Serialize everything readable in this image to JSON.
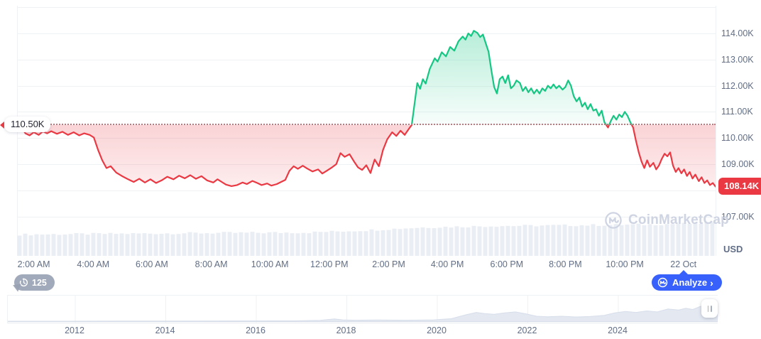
{
  "colors": {
    "up": "#16c784",
    "down": "#ea3943",
    "accent": "#3861fb",
    "grid": "#eff2f5",
    "axis_text": "#616e85",
    "watermark": "#ced4e2",
    "nav_fill": "#e3e8f1",
    "nav_stroke": "#d7deea",
    "volume": "#e9edf4"
  },
  "history_badge": {
    "count": "125"
  },
  "analyze": {
    "label": "Analyze",
    "chevron": "›"
  },
  "watermark": {
    "label": "CoinMarketCap"
  },
  "chart_data": {
    "type": "line",
    "unit": "USD",
    "baseline_value": 110.5,
    "baseline_label": "110.50K",
    "last_price_value": 108.14,
    "last_price_label": "108.14K",
    "ylim": [
      106.6,
      115.2
    ],
    "grid": true,
    "y_ticks": [
      {
        "label": "114.00K",
        "value": 114
      },
      {
        "label": "113.00K",
        "value": 113
      },
      {
        "label": "112.00K",
        "value": 112
      },
      {
        "label": "111.00K",
        "value": 111
      },
      {
        "label": "110.00K",
        "value": 110
      },
      {
        "label": "109.00K",
        "value": 109
      },
      {
        "label": "107.00K",
        "value": 107
      }
    ],
    "x_ticks": [
      {
        "label": "2:00 AM",
        "f": 0.024
      },
      {
        "label": "4:00 AM",
        "f": 0.109
      },
      {
        "label": "6:00 AM",
        "f": 0.193
      },
      {
        "label": "8:00 AM",
        "f": 0.278
      },
      {
        "label": "10:00 AM",
        "f": 0.362
      },
      {
        "label": "12:00 PM",
        "f": 0.447
      },
      {
        "label": "2:00 PM",
        "f": 0.532
      },
      {
        "label": "4:00 PM",
        "f": 0.616
      },
      {
        "label": "6:00 PM",
        "f": 0.701
      },
      {
        "label": "8:00 PM",
        "f": 0.785
      },
      {
        "label": "10:00 PM",
        "f": 0.87
      },
      {
        "label": "22 Oct",
        "f": 0.954
      }
    ],
    "price_series": [
      [
        0,
        110.5
      ],
      [
        0.006,
        110.42
      ],
      [
        0.012,
        110.18
      ],
      [
        0.018,
        110.1
      ],
      [
        0.024,
        110.22
      ],
      [
        0.031,
        110.12
      ],
      [
        0.037,
        110.25
      ],
      [
        0.043,
        110.18
      ],
      [
        0.049,
        110.26
      ],
      [
        0.057,
        110.16
      ],
      [
        0.065,
        110.24
      ],
      [
        0.073,
        110.12
      ],
      [
        0.081,
        110.22
      ],
      [
        0.089,
        110.1
      ],
      [
        0.096,
        110.18
      ],
      [
        0.104,
        110.12
      ],
      [
        0.11,
        110.02
      ],
      [
        0.116,
        109.55
      ],
      [
        0.122,
        109.15
      ],
      [
        0.128,
        108.85
      ],
      [
        0.134,
        108.92
      ],
      [
        0.142,
        108.68
      ],
      [
        0.15,
        108.55
      ],
      [
        0.159,
        108.42
      ],
      [
        0.167,
        108.32
      ],
      [
        0.175,
        108.44
      ],
      [
        0.183,
        108.3
      ],
      [
        0.191,
        108.42
      ],
      [
        0.199,
        108.28
      ],
      [
        0.207,
        108.38
      ],
      [
        0.215,
        108.52
      ],
      [
        0.224,
        108.42
      ],
      [
        0.232,
        108.56
      ],
      [
        0.24,
        108.46
      ],
      [
        0.248,
        108.58
      ],
      [
        0.256,
        108.44
      ],
      [
        0.264,
        108.54
      ],
      [
        0.272,
        108.38
      ],
      [
        0.281,
        108.3
      ],
      [
        0.287,
        108.42
      ],
      [
        0.293,
        108.32
      ],
      [
        0.299,
        108.22
      ],
      [
        0.307,
        108.16
      ],
      [
        0.315,
        108.2
      ],
      [
        0.323,
        108.3
      ],
      [
        0.329,
        108.24
      ],
      [
        0.337,
        108.36
      ],
      [
        0.344,
        108.28
      ],
      [
        0.35,
        108.2
      ],
      [
        0.358,
        108.26
      ],
      [
        0.364,
        108.18
      ],
      [
        0.372,
        108.24
      ],
      [
        0.378,
        108.32
      ],
      [
        0.384,
        108.4
      ],
      [
        0.39,
        108.75
      ],
      [
        0.396,
        108.92
      ],
      [
        0.402,
        108.82
      ],
      [
        0.409,
        108.94
      ],
      [
        0.415,
        108.84
      ],
      [
        0.423,
        108.72
      ],
      [
        0.431,
        108.8
      ],
      [
        0.437,
        108.64
      ],
      [
        0.443,
        108.74
      ],
      [
        0.451,
        108.88
      ],
      [
        0.457,
        109
      ],
      [
        0.463,
        109.42
      ],
      [
        0.469,
        109.28
      ],
      [
        0.476,
        109.38
      ],
      [
        0.482,
        109.12
      ],
      [
        0.488,
        108.88
      ],
      [
        0.494,
        108.78
      ],
      [
        0.5,
        108.96
      ],
      [
        0.506,
        108.66
      ],
      [
        0.512,
        109.18
      ],
      [
        0.518,
        108.92
      ],
      [
        0.524,
        109.55
      ],
      [
        0.53,
        109.95
      ],
      [
        0.537,
        110.22
      ],
      [
        0.543,
        110.08
      ],
      [
        0.549,
        110.28
      ],
      [
        0.555,
        110.12
      ],
      [
        0.561,
        110.35
      ],
      [
        0.565,
        110.5
      ],
      [
        0.569,
        111.3
      ],
      [
        0.573,
        112.1
      ],
      [
        0.577,
        111.88
      ],
      [
        0.581,
        112.25
      ],
      [
        0.585,
        112.08
      ],
      [
        0.591,
        112.65
      ],
      [
        0.598,
        113.05
      ],
      [
        0.602,
        112.92
      ],
      [
        0.608,
        113.28
      ],
      [
        0.614,
        113.12
      ],
      [
        0.62,
        113.48
      ],
      [
        0.626,
        113.34
      ],
      [
        0.632,
        113.7
      ],
      [
        0.638,
        113.88
      ],
      [
        0.642,
        113.76
      ],
      [
        0.646,
        114
      ],
      [
        0.65,
        113.9
      ],
      [
        0.654,
        114.1
      ],
      [
        0.659,
        114.02
      ],
      [
        0.663,
        113.86
      ],
      [
        0.667,
        113.96
      ],
      [
        0.671,
        113.62
      ],
      [
        0.675,
        113.3
      ],
      [
        0.679,
        112.6
      ],
      [
        0.683,
        111.95
      ],
      [
        0.687,
        111.7
      ],
      [
        0.691,
        112.25
      ],
      [
        0.695,
        112.35
      ],
      [
        0.699,
        112.1
      ],
      [
        0.703,
        112.4
      ],
      [
        0.707,
        111.9
      ],
      [
        0.711,
        112
      ],
      [
        0.715,
        112.2
      ],
      [
        0.72,
        112.1
      ],
      [
        0.724,
        111.8
      ],
      [
        0.728,
        111.95
      ],
      [
        0.732,
        111.75
      ],
      [
        0.736,
        111.9
      ],
      [
        0.74,
        111.7
      ],
      [
        0.744,
        111.85
      ],
      [
        0.748,
        111.7
      ],
      [
        0.752,
        111.9
      ],
      [
        0.756,
        111.8
      ],
      [
        0.76,
        112
      ],
      [
        0.764,
        111.9
      ],
      [
        0.768,
        112.05
      ],
      [
        0.772,
        111.9
      ],
      [
        0.776,
        112
      ],
      [
        0.781,
        111.85
      ],
      [
        0.785,
        111.95
      ],
      [
        0.789,
        112.2
      ],
      [
        0.793,
        112
      ],
      [
        0.797,
        111.6
      ],
      [
        0.801,
        111.4
      ],
      [
        0.805,
        111.55
      ],
      [
        0.809,
        111.2
      ],
      [
        0.813,
        111.35
      ],
      [
        0.817,
        111.1
      ],
      [
        0.821,
        111.3
      ],
      [
        0.825,
        111.05
      ],
      [
        0.829,
        111.1
      ],
      [
        0.833,
        110.85
      ],
      [
        0.837,
        111.05
      ],
      [
        0.841,
        110.6
      ],
      [
        0.846,
        110.4
      ],
      [
        0.85,
        110.65
      ],
      [
        0.854,
        110.85
      ],
      [
        0.858,
        110.7
      ],
      [
        0.862,
        110.9
      ],
      [
        0.866,
        110.8
      ],
      [
        0.87,
        111
      ],
      [
        0.874,
        110.85
      ],
      [
        0.878,
        110.6
      ],
      [
        0.882,
        110.4
      ],
      [
        0.886,
        109.9
      ],
      [
        0.89,
        109.45
      ],
      [
        0.894,
        109.1
      ],
      [
        0.898,
        108.85
      ],
      [
        0.902,
        109.15
      ],
      [
        0.906,
        108.9
      ],
      [
        0.911,
        109.05
      ],
      [
        0.915,
        108.8
      ],
      [
        0.919,
        108.95
      ],
      [
        0.923,
        109.2
      ],
      [
        0.927,
        109.4
      ],
      [
        0.931,
        109.3
      ],
      [
        0.935,
        109.45
      ],
      [
        0.939,
        108.95
      ],
      [
        0.943,
        108.7
      ],
      [
        0.947,
        108.85
      ],
      [
        0.951,
        108.65
      ],
      [
        0.955,
        108.8
      ],
      [
        0.959,
        108.55
      ],
      [
        0.963,
        108.7
      ],
      [
        0.967,
        108.45
      ],
      [
        0.971,
        108.6
      ],
      [
        0.976,
        108.35
      ],
      [
        0.98,
        108.5
      ],
      [
        0.984,
        108.28
      ],
      [
        0.988,
        108.38
      ],
      [
        0.992,
        108.2
      ],
      [
        0.996,
        108.28
      ],
      [
        1,
        108.14
      ]
    ],
    "volume_profile": [
      [
        0,
        30
      ],
      [
        0.25,
        32
      ],
      [
        0.42,
        33
      ],
      [
        0.5,
        36
      ],
      [
        0.58,
        40
      ],
      [
        0.68,
        42
      ],
      [
        0.8,
        43
      ],
      [
        0.9,
        44
      ],
      [
        1,
        46
      ]
    ],
    "navigator": {
      "years": [
        {
          "label": "2012",
          "f": 0.095
        },
        {
          "label": "2014",
          "f": 0.2225
        },
        {
          "label": "2016",
          "f": 0.35
        },
        {
          "label": "2018",
          "f": 0.4775
        },
        {
          "label": "2020",
          "f": 0.605
        },
        {
          "label": "2022",
          "f": 0.7325
        },
        {
          "label": "2024",
          "f": 0.86
        }
      ],
      "series": [
        [
          0,
          0.015
        ],
        [
          0.08,
          0.015
        ],
        [
          0.16,
          0.02
        ],
        [
          0.24,
          0.02
        ],
        [
          0.32,
          0.025
        ],
        [
          0.4,
          0.03
        ],
        [
          0.44,
          0.05
        ],
        [
          0.46,
          0.11
        ],
        [
          0.472,
          0.07
        ],
        [
          0.49,
          0.055
        ],
        [
          0.52,
          0.065
        ],
        [
          0.56,
          0.055
        ],
        [
          0.6,
          0.07
        ],
        [
          0.625,
          0.12
        ],
        [
          0.645,
          0.28
        ],
        [
          0.66,
          0.38
        ],
        [
          0.672,
          0.33
        ],
        [
          0.685,
          0.3
        ],
        [
          0.7,
          0.36
        ],
        [
          0.715,
          0.4
        ],
        [
          0.73,
          0.32
        ],
        [
          0.745,
          0.22
        ],
        [
          0.76,
          0.2
        ],
        [
          0.78,
          0.22
        ],
        [
          0.8,
          0.19
        ],
        [
          0.82,
          0.21
        ],
        [
          0.84,
          0.26
        ],
        [
          0.855,
          0.36
        ],
        [
          0.87,
          0.42
        ],
        [
          0.885,
          0.38
        ],
        [
          0.9,
          0.44
        ],
        [
          0.915,
          0.4
        ],
        [
          0.93,
          0.52
        ],
        [
          0.945,
          0.48
        ],
        [
          0.955,
          0.55
        ],
        [
          0.965,
          0.5
        ],
        [
          0.975,
          0.62
        ],
        [
          0.985,
          0.68
        ],
        [
          0.993,
          0.74
        ],
        [
          1,
          0.7
        ]
      ]
    }
  }
}
